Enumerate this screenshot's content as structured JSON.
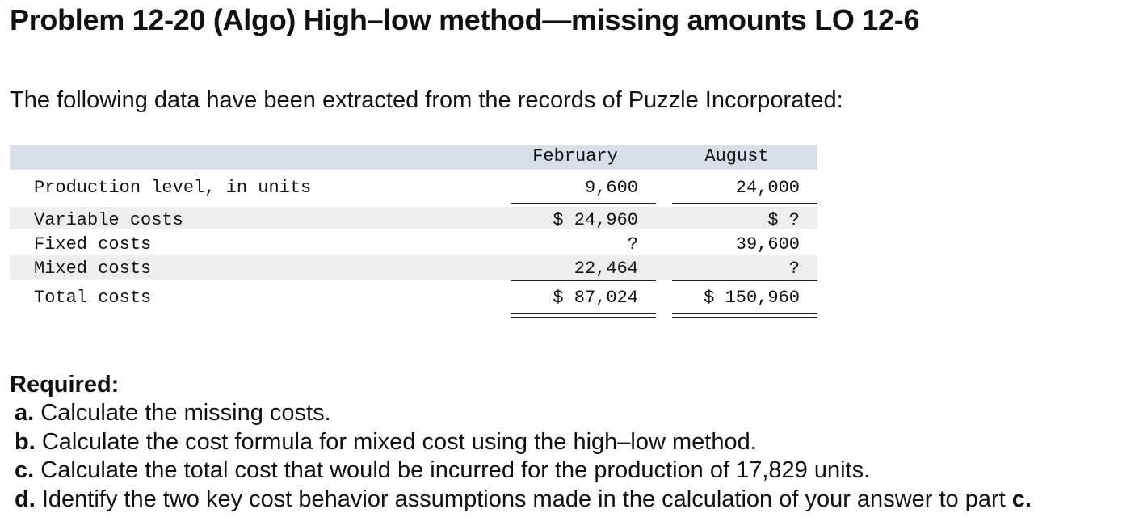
{
  "title": "Problem 12-20 (Algo) High–low method—missing amounts LO 12-6",
  "intro": "The following data have been extracted from the records of Puzzle Incorporated:",
  "table": {
    "columns": [
      "February",
      "August"
    ],
    "rows": [
      {
        "label": "Production level, in units",
        "february": "9,600",
        "august": "24,000"
      },
      {
        "label": "Variable costs",
        "february": "$ 24,960",
        "august": "$ ?"
      },
      {
        "label": "Fixed costs",
        "february": "?",
        "august": "39,600"
      },
      {
        "label": "Mixed costs",
        "february": "22,464",
        "august": "?"
      },
      {
        "label": "Total costs",
        "february": "$ 87,024",
        "august": "$ 150,960"
      }
    ]
  },
  "required": {
    "heading": "Required:",
    "items": [
      {
        "letter": "a.",
        "text": " Calculate the missing costs.",
        "end": ""
      },
      {
        "letter": "b.",
        "text": " Calculate the cost formula for mixed cost using the high–low method.",
        "end": ""
      },
      {
        "letter": "c.",
        "text": " Calculate the total cost that would be incurred for the production of 17,829 units.",
        "end": ""
      },
      {
        "letter": "d.",
        "text": " Identify the two key cost behavior assumptions made in the calculation of your answer to part ",
        "end": "c."
      }
    ]
  }
}
